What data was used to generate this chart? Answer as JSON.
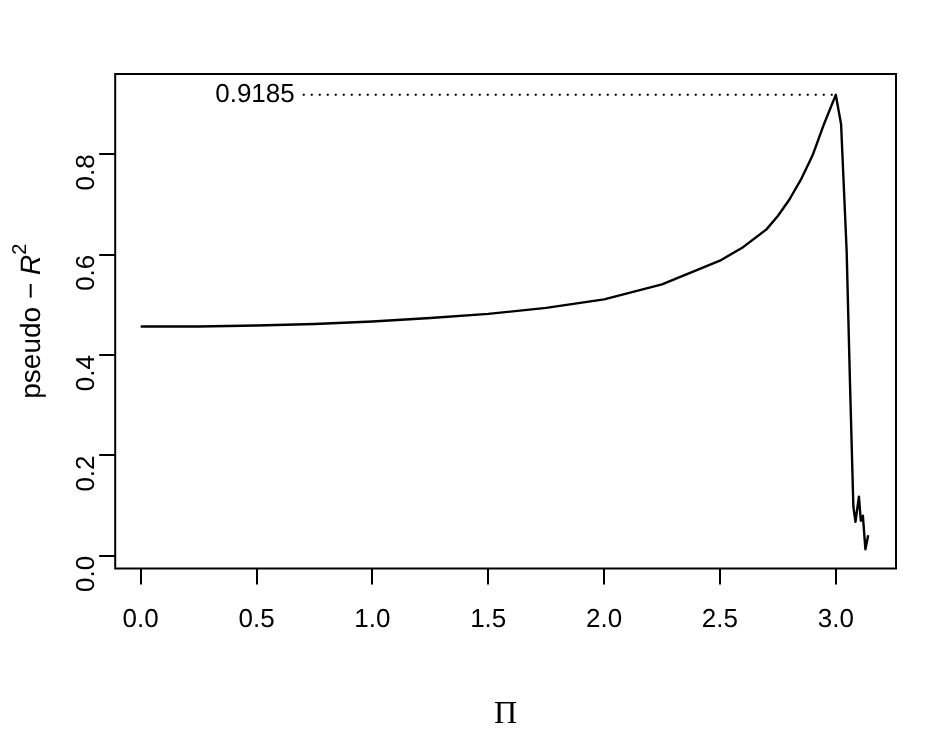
{
  "chart_data": {
    "type": "line",
    "xlabel": "Π",
    "ylabel": "pseudo − R$^{2}$",
    "x": [
      0,
      0.25,
      0.5,
      0.75,
      1.0,
      1.25,
      1.5,
      1.75,
      2.0,
      2.25,
      2.5,
      2.6,
      2.7,
      2.75,
      2.8,
      2.85,
      2.9,
      2.95,
      3.0,
      3.023,
      3.047,
      3.061,
      3.076,
      3.085,
      3.1,
      3.108,
      3.117,
      3.128,
      3.14
    ],
    "series": [
      {
        "color": "#000000",
        "values": [
          0.457,
          0.457,
          0.459,
          0.462,
          0.467,
          0.474,
          0.482,
          0.494,
          0.511,
          0.541,
          0.588,
          0.615,
          0.65,
          0.677,
          0.71,
          0.75,
          0.798,
          0.861,
          0.9185,
          0.86,
          0.607,
          0.352,
          0.098,
          0.068,
          0.118,
          0.07,
          0.08,
          0.013,
          0.041
        ]
      }
    ],
    "xlim": [
      -0.11,
      3.26
    ],
    "ylim": [
      -0.025,
      0.96
    ],
    "xticks": [
      {
        "value": 0,
        "label": "0.0"
      },
      0.5,
      {
        "value": 1,
        "label": "1.0"
      },
      1.5,
      {
        "value": 2,
        "label": "2.0"
      },
      2.5,
      {
        "value": 3,
        "label": "3.0"
      }
    ],
    "yticks": [
      {
        "value": 0,
        "label": "0.0"
      },
      0.2,
      0.4,
      0.6,
      0.8
    ],
    "ref_lines": [
      {
        "axis": "y",
        "value": 0.9185,
        "label": "0.9185",
        "line_style": "dotted"
      }
    ],
    "grid": false,
    "legend": false,
    "marker": "none",
    "line_style": "solid"
  }
}
